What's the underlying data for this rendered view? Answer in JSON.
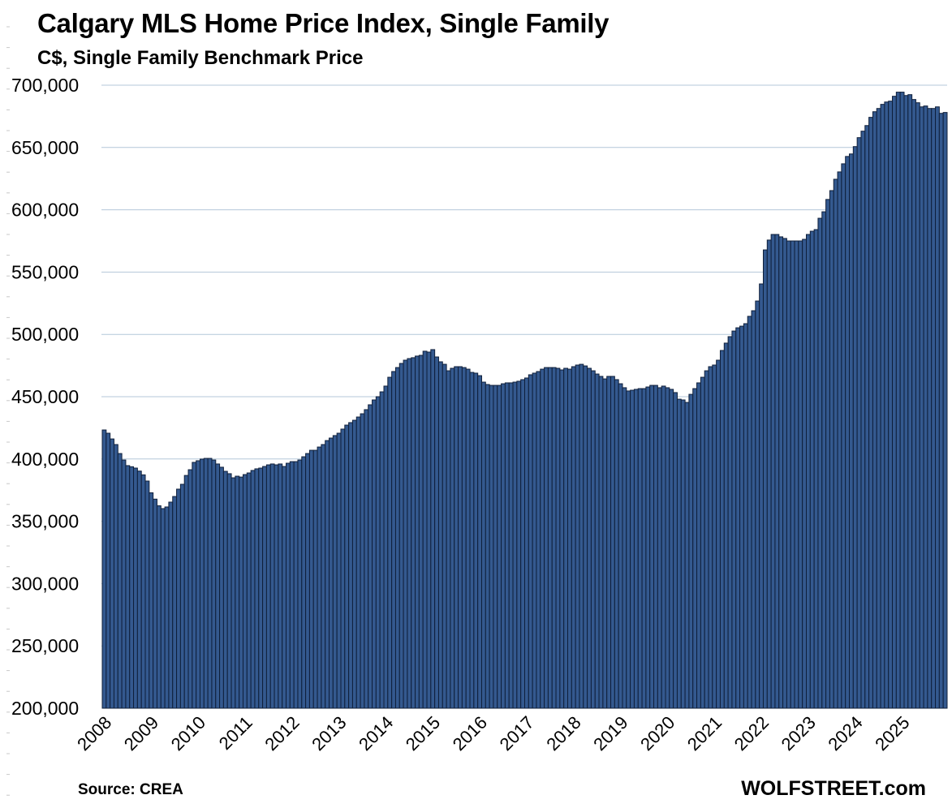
{
  "header": {
    "title": "Calgary MLS Home Price Index, Single Family",
    "subtitle": "C$, Single Family Benchmark Price"
  },
  "footer": {
    "source": "Source: CREA",
    "brand": "WOLFSTREET.com"
  },
  "colors": {
    "bar_fill": "#34598f",
    "bar_outline": "#0f1f3a",
    "gridline": "#b4c7d9"
  },
  "chart_data": {
    "type": "bar",
    "title": "Calgary MLS Home Price Index, Single Family",
    "subtitle": "C$, Single Family Benchmark Price",
    "xlabel": "",
    "ylabel": "",
    "frequency": "monthly",
    "ylim": [
      200000,
      700000
    ],
    "grid": true,
    "y_ticks": [
      200000,
      250000,
      300000,
      350000,
      400000,
      450000,
      500000,
      550000,
      600000,
      650000,
      700000
    ],
    "y_tick_labels": [
      "200,000",
      "250,000",
      "300,000",
      "350,000",
      "400,000",
      "450,000",
      "500,000",
      "550,000",
      "600,000",
      "650,000",
      "700,000"
    ],
    "x_tick_labels": [
      "2008",
      "2009",
      "2010",
      "2011",
      "2012",
      "2013",
      "2014",
      "2015",
      "2016",
      "2017",
      "2018",
      "2019",
      "2020",
      "2021",
      "2022",
      "2023",
      "2024",
      "2025"
    ],
    "series": [
      {
        "name": "Single Family Benchmark Price",
        "values": [
          423300,
          420700,
          416100,
          411600,
          404400,
          399200,
          394700,
          393800,
          392700,
          390300,
          387300,
          382300,
          372900,
          367800,
          362500,
          360200,
          361500,
          365400,
          369900,
          375800,
          379700,
          386800,
          391400,
          397300,
          398600,
          399900,
          400500,
          400500,
          399200,
          396000,
          393400,
          390100,
          388200,
          384900,
          386200,
          385500,
          387500,
          388800,
          390800,
          392100,
          392700,
          394000,
          395300,
          396000,
          395300,
          396000,
          394000,
          396600,
          397900,
          397900,
          399200,
          401800,
          404400,
          407000,
          407000,
          409600,
          411600,
          414800,
          416800,
          418800,
          420700,
          424000,
          427200,
          429200,
          431100,
          433700,
          436300,
          439600,
          443500,
          447400,
          450000,
          453900,
          458500,
          465600,
          470200,
          473400,
          476700,
          479300,
          480600,
          481300,
          482600,
          483200,
          486500,
          485800,
          487800,
          481900,
          478000,
          476000,
          470800,
          472800,
          474100,
          474100,
          473400,
          472100,
          469500,
          468900,
          466900,
          461700,
          459800,
          459100,
          459100,
          459100,
          460400,
          461100,
          461100,
          461700,
          462400,
          463700,
          465000,
          467600,
          468900,
          470200,
          472100,
          473400,
          473400,
          473400,
          472800,
          471500,
          472800,
          472100,
          474100,
          475400,
          476000,
          474700,
          472800,
          470800,
          468200,
          466300,
          464300,
          466300,
          466300,
          463700,
          460400,
          457200,
          454600,
          455200,
          455900,
          456500,
          456500,
          457800,
          459100,
          459100,
          457200,
          458500,
          457200,
          455900,
          453300,
          448000,
          447400,
          445400,
          451900,
          456500,
          461100,
          465600,
          470800,
          474100,
          475400,
          479300,
          487100,
          493000,
          498200,
          502700,
          505300,
          506600,
          508600,
          514500,
          519000,
          526800,
          540500,
          567800,
          575700,
          580200,
          580200,
          578300,
          577000,
          575000,
          575000,
          575000,
          575000,
          576300,
          580200,
          582800,
          584100,
          593200,
          598400,
          608300,
          615400,
          624500,
          630400,
          636900,
          642800,
          644800,
          650700,
          657900,
          663100,
          667600,
          674200,
          678700,
          681300,
          684600,
          686500,
          687200,
          691100,
          694400,
          694400,
          691700,
          692400,
          688500,
          685900,
          682600,
          683300,
          681300,
          681300,
          682600,
          677400,
          678100
        ]
      }
    ],
    "legend": "none"
  }
}
